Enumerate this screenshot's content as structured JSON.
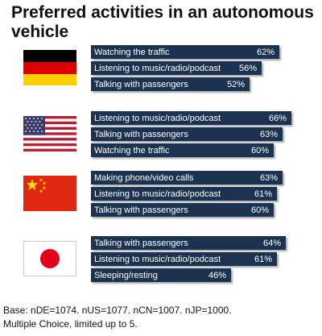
{
  "title": "Preferred activities in an autonomous vehicle",
  "footer": {
    "line1": "Base: nDE=1074. nUS=1077. nCN=1007. nJP=1000.",
    "line2": "Multiple Choice, limited up to 5."
  },
  "colors": {
    "bar": "#1b3350"
  },
  "chart_data": [
    {
      "type": "bar",
      "orientation": "horizontal",
      "flag": "germany-flag-icon",
      "categories": [
        "Watching the traffic",
        "Listening to music/radio/podcast",
        "Talking with passengers"
      ],
      "values": [
        62,
        56,
        52
      ],
      "labels": [
        "62%",
        "56%",
        "52%"
      ]
    },
    {
      "type": "bar",
      "orientation": "horizontal",
      "flag": "usa-flag-icon",
      "categories": [
        "Listening to music/radio/podcast",
        "Talking with passengers",
        "Watching the traffic"
      ],
      "values": [
        66,
        63,
        60
      ],
      "labels": [
        "66%",
        "63%",
        "60%"
      ]
    },
    {
      "type": "bar",
      "orientation": "horizontal",
      "flag": "china-flag-icon",
      "categories": [
        "Making phone/video calls",
        "Listening to music/radio/podcast",
        "Talking with passengers"
      ],
      "values": [
        63,
        61,
        60
      ],
      "labels": [
        "63%",
        "61%",
        "60%"
      ]
    },
    {
      "type": "bar",
      "orientation": "horizontal",
      "flag": "japan-flag-icon",
      "categories": [
        "Talking with passengers",
        "Listening to music/radio/podcast",
        "Sleeping/resting"
      ],
      "values": [
        64,
        61,
        46
      ],
      "labels": [
        "64%",
        "61%",
        "46%"
      ]
    }
  ]
}
